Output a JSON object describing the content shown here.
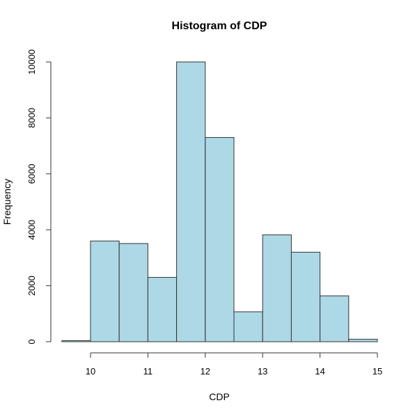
{
  "chart_data": {
    "type": "bar",
    "title": "Histogram of CDP",
    "xlabel": "CDP",
    "ylabel": "Frequency",
    "bin_edges": [
      9.5,
      10,
      10.5,
      11,
      11.5,
      12,
      12.5,
      13,
      13.5,
      14,
      14.5,
      15
    ],
    "values": [
      40,
      3600,
      3510,
      2300,
      10000,
      7300,
      1070,
      3820,
      3200,
      1640,
      90
    ],
    "xlim": [
      9.5,
      15
    ],
    "ylim": [
      0,
      10000
    ],
    "x_ticks": [
      10,
      11,
      12,
      13,
      14,
      15
    ],
    "y_ticks": [
      0,
      2000,
      4000,
      6000,
      8000,
      10000
    ],
    "bar_color": "#add8e6",
    "edge_color": "#333333",
    "grid": false
  }
}
